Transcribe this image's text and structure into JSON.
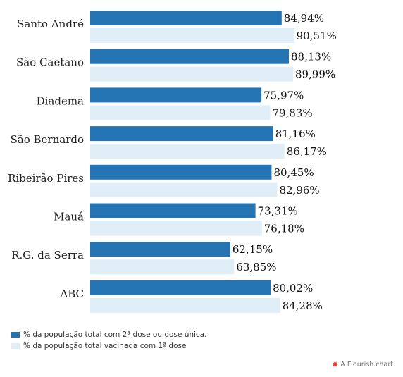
{
  "chart_data": {
    "type": "bar",
    "orientation": "horizontal",
    "categories": [
      "Santo André",
      "São Caetano",
      "Diadema",
      "São Bernardo",
      "Ribeirão Pires",
      "Mauá",
      "R.G. da Serra",
      "ABC"
    ],
    "series": [
      {
        "name": "% da população total com 2ª dose ou dose única.",
        "color": "#2575b5",
        "values": [
          84.94,
          88.13,
          75.97,
          81.16,
          80.45,
          73.31,
          62.15,
          80.02
        ],
        "labels": [
          "84,94%",
          "88,13%",
          "75,97%",
          "81,16%",
          "80,45%",
          "73,31%",
          "62,15%",
          "80,02%"
        ]
      },
      {
        "name": "% da população total vacinada com 1ª dose",
        "color": "#dfeef7",
        "values": [
          90.51,
          89.99,
          79.83,
          86.17,
          82.96,
          76.18,
          63.85,
          84.28
        ],
        "labels": [
          "90,51%",
          "89,99%",
          "79,83%",
          "86,17%",
          "82,96%",
          "76,18%",
          "63,85%",
          "84,28%"
        ]
      }
    ],
    "xlim": [
      0,
      100
    ],
    "grid": false,
    "legend_position": "bottom-left"
  },
  "credit": {
    "text": "A Flourish chart",
    "icon": "flourish-logo-icon"
  }
}
